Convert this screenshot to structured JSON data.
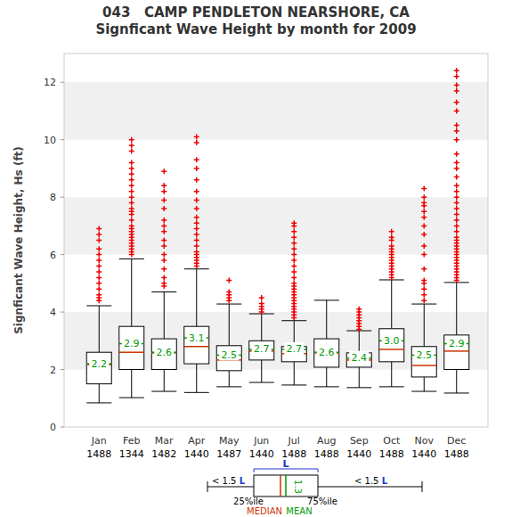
{
  "chart_data": {
    "type": "box",
    "title": "043   CAMP PENDLETON NEARSHORE, CA",
    "subtitle": "Signficant Wave Height by month for 2009",
    "y_label": "Signficant Wave Height, Hs (ft)",
    "categories": [
      "Jan",
      "Feb",
      "Mar",
      "Apr",
      "May",
      "Jun",
      "Jul",
      "Aug",
      "Sep",
      "Oct",
      "Nov",
      "Dec"
    ],
    "counts": [
      1488,
      1344,
      1482,
      1440,
      1487,
      1440,
      1488,
      1488,
      1440,
      1488,
      1440,
      1488
    ],
    "whisker_low": [
      0.84,
      1.02,
      1.24,
      1.2,
      1.4,
      1.55,
      1.46,
      1.4,
      1.37,
      1.4,
      1.24,
      1.18
    ],
    "q1": [
      1.5,
      2.0,
      2.0,
      2.2,
      1.96,
      2.33,
      2.27,
      2.08,
      2.08,
      2.27,
      1.74,
      2.0
    ],
    "median": [
      2.17,
      2.6,
      2.58,
      2.8,
      2.33,
      2.64,
      2.55,
      2.58,
      2.33,
      2.7,
      2.14,
      2.64
    ],
    "q3": [
      2.6,
      3.5,
      3.07,
      3.5,
      2.83,
      3.0,
      2.8,
      3.07,
      2.58,
      3.42,
      2.8,
      3.2
    ],
    "whisker_high": [
      4.22,
      5.85,
      4.7,
      5.5,
      4.28,
      3.94,
      3.7,
      4.41,
      3.35,
      5.12,
      4.28,
      5.03
    ],
    "mean": [
      2.2,
      2.9,
      2.6,
      3.1,
      2.5,
      2.7,
      2.7,
      2.6,
      2.4,
      3.0,
      2.5,
      2.9
    ],
    "mean_labels": [
      "2.2",
      "2.9",
      "2.6",
      "3.1",
      "2.5",
      "2.7",
      "2.7",
      "2.6",
      "2.4",
      "3.0",
      "2.5",
      "2.9"
    ],
    "outliers": [
      [
        4.4,
        4.5,
        4.6,
        4.8,
        5.0,
        5.2,
        5.4,
        5.6,
        5.8,
        6.0,
        6.2,
        6.5,
        6.7,
        6.9
      ],
      [
        6.0,
        6.1,
        6.2,
        6.3,
        6.4,
        6.5,
        6.6,
        6.7,
        6.8,
        6.9,
        7.0,
        7.2,
        7.4,
        7.5,
        7.6,
        7.8,
        8.0,
        8.2,
        8.4,
        8.6,
        8.8,
        9.0,
        9.2,
        9.6,
        9.8,
        10.0
      ],
      [
        4.9,
        5.0,
        5.2,
        5.5,
        5.8,
        6.0,
        6.3,
        6.5,
        6.8,
        7.0,
        7.2,
        7.6,
        7.9,
        8.2,
        8.4,
        8.9
      ],
      [
        5.6,
        5.7,
        5.8,
        5.9,
        6.0,
        6.1,
        6.3,
        6.5,
        6.7,
        6.9,
        7.1,
        7.3,
        7.6,
        7.9,
        8.2,
        8.6,
        9.0,
        9.3,
        9.9,
        10.1
      ],
      [
        4.4,
        4.5,
        4.6,
        4.7,
        5.1
      ],
      [
        4.0,
        4.1,
        4.2,
        4.3,
        4.5
      ],
      [
        3.8,
        3.9,
        4.0,
        4.1,
        4.2,
        4.3,
        4.4,
        4.5,
        4.6,
        4.7,
        4.8,
        4.9,
        5.0,
        5.2,
        5.4,
        5.6,
        5.8,
        6.0,
        6.2,
        6.4,
        6.6,
        6.8,
        7.0,
        7.1
      ],
      [],
      [
        3.4,
        3.5,
        3.6,
        3.7,
        3.8,
        3.9,
        4.0,
        4.1
      ],
      [
        5.2,
        5.3,
        5.4,
        5.5,
        5.6,
        5.7,
        5.8,
        5.9,
        6.0,
        6.1,
        6.2,
        6.3,
        6.5,
        6.6,
        6.8
      ],
      [
        4.4,
        4.6,
        4.8,
        5.0,
        5.1,
        5.5,
        6.0,
        6.3,
        6.7,
        7.0,
        7.3,
        7.5,
        7.7,
        7.8,
        8.0,
        8.3
      ],
      [
        5.1,
        5.2,
        5.3,
        5.4,
        5.5,
        5.6,
        5.7,
        5.8,
        5.9,
        6.0,
        6.1,
        6.2,
        6.3,
        6.4,
        6.5,
        6.6,
        6.8,
        7.0,
        7.2,
        7.4,
        7.6,
        7.8,
        8.0,
        8.2,
        8.4,
        8.7,
        9.0,
        9.2,
        9.5,
        10.0,
        10.3,
        10.5,
        11.0,
        11.3,
        11.7,
        11.9,
        12.2,
        12.4
      ]
    ],
    "color": "#000000",
    "median_color": "#cc3300",
    "mean_color": "#009900",
    "outlier_color": "#ee0000",
    "marker": "plus",
    "ylim": [
      0,
      13
    ],
    "yticks": [
      0,
      2,
      4,
      6,
      8,
      10,
      12
    ],
    "grid": true,
    "data_labels": true,
    "legend_key": {
      "range_text": "< 1.5 ",
      "L": "L",
      "q1_text": "25%ile",
      "q3_text": "75%ile",
      "median_text": "MEDIAN",
      "mean_text": "MEAN",
      "mean_example": "1.3"
    }
  }
}
